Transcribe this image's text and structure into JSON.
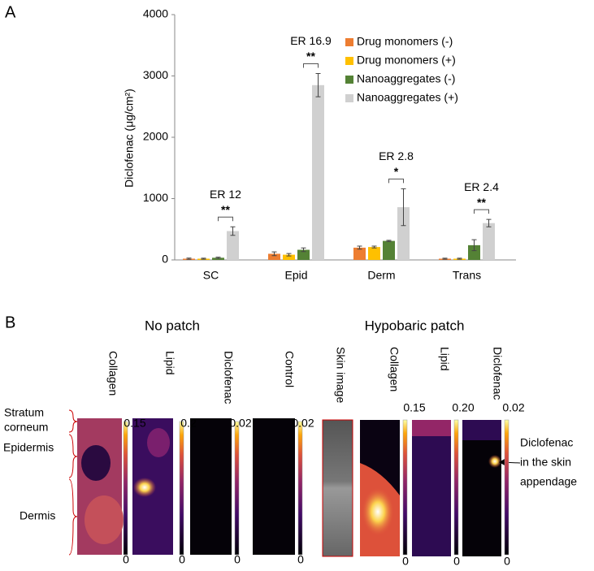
{
  "panel_labels": [
    "A",
    "B"
  ],
  "chart_data": {
    "type": "bar",
    "ylabel": "Diclofenac (μg/cm²)",
    "categories": [
      "SC",
      "Epid",
      "Derm",
      "Trans"
    ],
    "series": [
      {
        "name": "Drug monomers (-)",
        "color": "#ed7d31",
        "values": [
          20,
          100,
          200,
          20
        ],
        "errors": [
          10,
          30,
          25,
          8
        ]
      },
      {
        "name": "Drug monomers (+)",
        "color": "#ffc000",
        "values": [
          20,
          85,
          210,
          20
        ],
        "errors": [
          8,
          20,
          15,
          8
        ]
      },
      {
        "name": "Nanoaggregates (-)",
        "color": "#548235",
        "values": [
          35,
          165,
          310,
          240
        ],
        "errors": [
          10,
          30,
          10,
          90
        ]
      },
      {
        "name": "Nanoaggregates (+)",
        "color": "#d0d0d0",
        "values": [
          470,
          2850,
          860,
          600
        ],
        "errors": [
          70,
          190,
          300,
          60
        ]
      }
    ],
    "annotations": [
      {
        "text": "ER 12",
        "sig": "**"
      },
      {
        "text": "ER 16.9",
        "sig": "**"
      },
      {
        "text": "ER 2.8",
        "sig": "*"
      },
      {
        "text": "ER 2.4",
        "sig": "**"
      }
    ],
    "ylim": [
      0,
      4000
    ],
    "yticks": [
      0,
      1000,
      2000,
      3000,
      4000
    ],
    "legend": "upper right"
  },
  "panel_b": {
    "groups": [
      "No patch",
      "Hypobaric patch"
    ],
    "layers": [
      [
        "Stratum",
        "corneum"
      ],
      [
        "Epidermis"
      ],
      [
        "Dermis"
      ]
    ],
    "images": [
      {
        "label": "Collagen",
        "max": "0.15",
        "min": "0"
      },
      {
        "label": "Lipid",
        "max": "0.2",
        "min": "0"
      },
      {
        "label": "Diclofenac",
        "max": "0.02",
        "min": "0"
      },
      {
        "label": "Control",
        "max": "0.02",
        "min": "0"
      },
      {
        "label": "Skin image"
      },
      {
        "label": "Collagen",
        "max": "0.15",
        "min": "0"
      },
      {
        "label": "Lipid",
        "max": "0.20",
        "min": "0"
      },
      {
        "label": "Diclofenac",
        "max": "0.02",
        "min": "0"
      }
    ],
    "callout": [
      "Diclofenac",
      "in the skin",
      "appendage"
    ]
  }
}
